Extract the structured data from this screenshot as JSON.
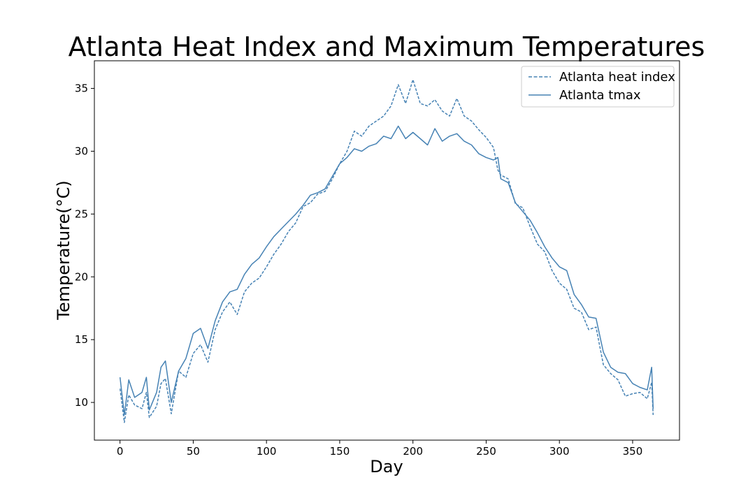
{
  "chart_data": {
    "type": "line",
    "title": "Atlanta Heat Index and Maximum Temperatures",
    "xlabel": "Day",
    "ylabel": "Temperature(°C)",
    "xlim": [
      -17.5,
      382
    ],
    "ylim": [
      7.0,
      37.2
    ],
    "xticks": [
      0,
      50,
      100,
      150,
      200,
      250,
      300,
      350
    ],
    "yticks": [
      10,
      15,
      20,
      25,
      30,
      35
    ],
    "grid": false,
    "legend_position": "top-right",
    "series_color": "#4682b4",
    "series": [
      {
        "name": "Atlanta heat index",
        "style": "dashed",
        "points": [
          [
            0,
            11.1
          ],
          [
            3,
            8.4
          ],
          [
            6,
            10.6
          ],
          [
            10,
            9.8
          ],
          [
            15,
            9.5
          ],
          [
            18,
            10.8
          ],
          [
            20,
            8.8
          ],
          [
            25,
            9.7
          ],
          [
            28,
            11.5
          ],
          [
            31,
            11.9
          ],
          [
            35,
            9.1
          ],
          [
            40,
            12.5
          ],
          [
            45,
            12.0
          ],
          [
            50,
            13.9
          ],
          [
            55,
            14.6
          ],
          [
            60,
            13.2
          ],
          [
            65,
            15.8
          ],
          [
            70,
            17.2
          ],
          [
            75,
            18.0
          ],
          [
            80,
            17.0
          ],
          [
            85,
            18.8
          ],
          [
            90,
            19.5
          ],
          [
            95,
            19.9
          ],
          [
            100,
            20.8
          ],
          [
            105,
            21.8
          ],
          [
            110,
            22.6
          ],
          [
            115,
            23.6
          ],
          [
            120,
            24.3
          ],
          [
            125,
            25.6
          ],
          [
            130,
            25.9
          ],
          [
            135,
            26.6
          ],
          [
            140,
            26.8
          ],
          [
            145,
            27.8
          ],
          [
            150,
            29.0
          ],
          [
            155,
            30.0
          ],
          [
            160,
            31.6
          ],
          [
            165,
            31.2
          ],
          [
            170,
            32.0
          ],
          [
            175,
            32.4
          ],
          [
            180,
            32.8
          ],
          [
            185,
            33.6
          ],
          [
            190,
            35.3
          ],
          [
            195,
            33.8
          ],
          [
            200,
            35.7
          ],
          [
            205,
            33.8
          ],
          [
            210,
            33.6
          ],
          [
            215,
            34.1
          ],
          [
            220,
            33.2
          ],
          [
            225,
            32.8
          ],
          [
            230,
            34.2
          ],
          [
            235,
            32.8
          ],
          [
            240,
            32.4
          ],
          [
            245,
            31.7
          ],
          [
            250,
            31.1
          ],
          [
            255,
            30.3
          ],
          [
            258,
            28.5
          ],
          [
            260,
            28.1
          ],
          [
            265,
            27.8
          ],
          [
            270,
            25.8
          ],
          [
            275,
            25.5
          ],
          [
            280,
            24.0
          ],
          [
            285,
            22.6
          ],
          [
            290,
            22.0
          ],
          [
            295,
            20.5
          ],
          [
            300,
            19.5
          ],
          [
            305,
            19.0
          ],
          [
            310,
            17.5
          ],
          [
            315,
            17.2
          ],
          [
            320,
            15.8
          ],
          [
            325,
            16.0
          ],
          [
            330,
            13.0
          ],
          [
            335,
            12.3
          ],
          [
            340,
            11.8
          ],
          [
            345,
            10.5
          ],
          [
            350,
            10.7
          ],
          [
            355,
            10.8
          ],
          [
            360,
            10.3
          ],
          [
            363,
            11.6
          ],
          [
            364,
            9.0
          ]
        ]
      },
      {
        "name": "Atlanta tmax",
        "style": "solid",
        "points": [
          [
            0,
            12.0
          ],
          [
            3,
            9.0
          ],
          [
            6,
            11.8
          ],
          [
            10,
            10.4
          ],
          [
            15,
            10.8
          ],
          [
            18,
            12.0
          ],
          [
            20,
            9.4
          ],
          [
            25,
            10.8
          ],
          [
            28,
            12.8
          ],
          [
            31,
            13.3
          ],
          [
            35,
            10.0
          ],
          [
            40,
            12.5
          ],
          [
            45,
            13.5
          ],
          [
            50,
            15.5
          ],
          [
            55,
            15.9
          ],
          [
            60,
            14.3
          ],
          [
            65,
            16.5
          ],
          [
            70,
            18.0
          ],
          [
            75,
            18.8
          ],
          [
            80,
            19.0
          ],
          [
            85,
            20.2
          ],
          [
            90,
            21.0
          ],
          [
            95,
            21.5
          ],
          [
            100,
            22.4
          ],
          [
            105,
            23.2
          ],
          [
            110,
            23.8
          ],
          [
            115,
            24.4
          ],
          [
            120,
            25.0
          ],
          [
            125,
            25.7
          ],
          [
            130,
            26.5
          ],
          [
            135,
            26.7
          ],
          [
            140,
            27.0
          ],
          [
            145,
            28.0
          ],
          [
            150,
            29.0
          ],
          [
            155,
            29.5
          ],
          [
            160,
            30.2
          ],
          [
            165,
            30.0
          ],
          [
            170,
            30.4
          ],
          [
            175,
            30.6
          ],
          [
            180,
            31.2
          ],
          [
            185,
            31.0
          ],
          [
            190,
            32.0
          ],
          [
            195,
            31.0
          ],
          [
            200,
            31.5
          ],
          [
            205,
            31.0
          ],
          [
            210,
            30.5
          ],
          [
            215,
            31.8
          ],
          [
            220,
            30.8
          ],
          [
            225,
            31.2
          ],
          [
            230,
            31.4
          ],
          [
            235,
            30.8
          ],
          [
            240,
            30.5
          ],
          [
            245,
            29.8
          ],
          [
            250,
            29.5
          ],
          [
            255,
            29.3
          ],
          [
            258,
            29.5
          ],
          [
            260,
            27.8
          ],
          [
            265,
            27.5
          ],
          [
            270,
            25.9
          ],
          [
            275,
            25.2
          ],
          [
            280,
            24.5
          ],
          [
            285,
            23.5
          ],
          [
            290,
            22.4
          ],
          [
            295,
            21.5
          ],
          [
            300,
            20.8
          ],
          [
            305,
            20.5
          ],
          [
            310,
            18.6
          ],
          [
            315,
            17.8
          ],
          [
            320,
            16.8
          ],
          [
            325,
            16.7
          ],
          [
            330,
            14.0
          ],
          [
            335,
            12.8
          ],
          [
            340,
            12.4
          ],
          [
            345,
            12.3
          ],
          [
            350,
            11.5
          ],
          [
            355,
            11.2
          ],
          [
            360,
            11.0
          ],
          [
            363,
            12.8
          ],
          [
            364,
            9.5
          ]
        ]
      }
    ]
  }
}
